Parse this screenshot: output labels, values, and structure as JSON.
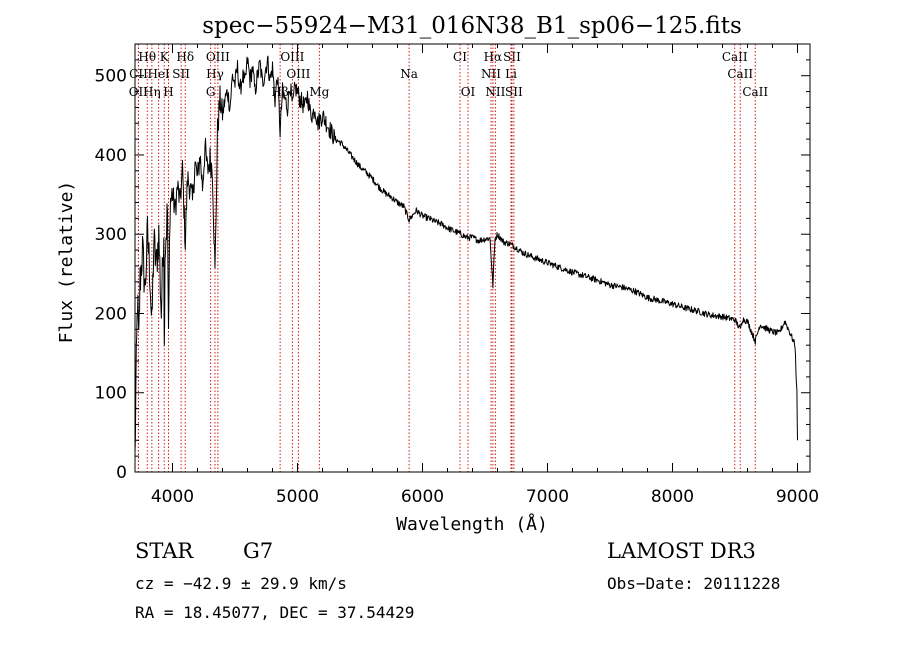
{
  "chart_data": {
    "type": "line",
    "title": "spec−55924−M31_016N38_B1_sp06−125.fits",
    "xlabel": "Wavelength (Å)",
    "ylabel": "Flux (relative)",
    "xlim": [
      3700,
      9100
    ],
    "ylim": [
      0,
      540
    ],
    "xticks": [
      4000,
      5000,
      6000,
      7000,
      8000,
      9000
    ],
    "xtick_labels": [
      "4000",
      "5000",
      "6000",
      "7000",
      "8000",
      "9000"
    ],
    "yticks": [
      0,
      100,
      200,
      300,
      400,
      500
    ],
    "ytick_labels": [
      "0",
      "100",
      "200",
      "300",
      "400",
      "500"
    ],
    "spectrum": {
      "x": [
        3700,
        3710,
        3720,
        3730,
        3740,
        3760,
        3780,
        3800,
        3820,
        3835,
        3850,
        3870,
        3890,
        3910,
        3930,
        3934,
        3940,
        3960,
        3968,
        3980,
        4000,
        4020,
        4040,
        4060,
        4080,
        4102,
        4120,
        4140,
        4160,
        4180,
        4200,
        4220,
        4240,
        4260,
        4280,
        4300,
        4320,
        4340,
        4360,
        4380,
        4400,
        4420,
        4440,
        4460,
        4480,
        4500,
        4520,
        4540,
        4560,
        4580,
        4600,
        4620,
        4640,
        4660,
        4680,
        4700,
        4720,
        4740,
        4760,
        4780,
        4800,
        4820,
        4840,
        4861,
        4880,
        4900,
        4920,
        4940,
        4960,
        4980,
        5000,
        5020,
        5040,
        5060,
        5080,
        5100,
        5120,
        5140,
        5160,
        5180,
        5200,
        5250,
        5300,
        5350,
        5400,
        5450,
        5500,
        5550,
        5600,
        5650,
        5700,
        5750,
        5800,
        5850,
        5893,
        5950,
        6000,
        6050,
        6100,
        6150,
        6200,
        6250,
        6300,
        6350,
        6400,
        6450,
        6500,
        6540,
        6563,
        6580,
        6600,
        6650,
        6700,
        6750,
        6800,
        6900,
        7000,
        7100,
        7200,
        7300,
        7400,
        7500,
        7600,
        7700,
        7800,
        7900,
        8000,
        8100,
        8200,
        8300,
        8400,
        8500,
        8542,
        8560,
        8600,
        8662,
        8700,
        8750,
        8800,
        8850,
        8900,
        8950,
        8980,
        8995,
        9000
      ],
      "y": [
        15,
        130,
        220,
        160,
        240,
        280,
        230,
        300,
        250,
        180,
        290,
        260,
        300,
        200,
        310,
        150,
        280,
        330,
        160,
        340,
        350,
        330,
        360,
        340,
        380,
        290,
        370,
        360,
        340,
        390,
        370,
        400,
        360,
        410,
        380,
        395,
        380,
        250,
        430,
        470,
        450,
        470,
        480,
        460,
        500,
        490,
        510,
        480,
        500,
        490,
        520,
        495,
        510,
        480,
        500,
        515,
        490,
        505,
        520,
        495,
        510,
        470,
        500,
        430,
        480,
        470,
        460,
        490,
        460,
        485,
        480,
        470,
        465,
        460,
        475,
        455,
        450,
        460,
        440,
        445,
        450,
        435,
        420,
        415,
        405,
        395,
        385,
        378,
        370,
        360,
        352,
        347,
        340,
        335,
        318,
        330,
        323,
        320,
        316,
        313,
        308,
        304,
        301,
        296,
        296,
        292,
        294,
        295,
        235,
        294,
        300,
        290,
        288,
        283,
        277,
        270,
        264,
        258,
        252,
        247,
        242,
        236,
        233,
        228,
        220,
        216,
        212,
        207,
        203,
        198,
        196,
        192,
        180,
        193,
        190,
        165,
        186,
        181,
        177,
        175,
        190,
        172,
        160,
        100,
        40
      ]
    },
    "lines": [
      {
        "name": "Hθ",
        "wavelength": 3798,
        "row": 1
      },
      {
        "name": "K",
        "wavelength": 3934,
        "row": 1
      },
      {
        "name": "Hδ",
        "wavelength": 4102,
        "row": 1
      },
      {
        "name": "OIII",
        "wavelength": 4363,
        "row": 1
      },
      {
        "name": "OIII",
        "wavelength": 4959,
        "row": 1
      },
      {
        "name": "CI",
        "wavelength": 6300,
        "row": 1
      },
      {
        "name": "Hα",
        "wavelength": 6563,
        "row": 1
      },
      {
        "name": "SII",
        "wavelength": 6716,
        "row": 1
      },
      {
        "name": "CaII",
        "wavelength": 8498,
        "row": 1
      },
      {
        "name": "CII",
        "wavelength": 3728,
        "row": 2
      },
      {
        "name": "HeI",
        "wavelength": 3889,
        "row": 2
      },
      {
        "name": "SII",
        "wavelength": 4069,
        "row": 2
      },
      {
        "name": "Hγ",
        "wavelength": 4340,
        "row": 2
      },
      {
        "name": "OIII",
        "wavelength": 5007,
        "row": 2
      },
      {
        "name": "Na",
        "wavelength": 5893,
        "row": 2
      },
      {
        "name": "NII",
        "wavelength": 6548,
        "row": 2
      },
      {
        "name": "Li",
        "wavelength": 6708,
        "row": 2
      },
      {
        "name": "CaII",
        "wavelength": 8542,
        "row": 2
      },
      {
        "name": "OII",
        "wavelength": 3727,
        "row": 3
      },
      {
        "name": "Hη",
        "wavelength": 3835,
        "row": 3
      },
      {
        "name": "H",
        "wavelength": 3968,
        "row": 3
      },
      {
        "name": "G",
        "wavelength": 4305,
        "row": 3
      },
      {
        "name": "Hβ",
        "wavelength": 4861,
        "row": 3
      },
      {
        "name": "Mg",
        "wavelength": 5175,
        "row": 3
      },
      {
        "name": "OI",
        "wavelength": 6364,
        "row": 3
      },
      {
        "name": "NII",
        "wavelength": 6583,
        "row": 3
      },
      {
        "name": "SII",
        "wavelength": 6731,
        "row": 3
      },
      {
        "name": "CaII",
        "wavelength": 8662,
        "row": 3
      }
    ],
    "line_color": "#d01818"
  },
  "info": {
    "class_label": "STAR",
    "subclass": "G7",
    "survey": "LAMOST DR3",
    "cz": "cz = −42.9 ± 29.9 km/s",
    "obs_date": "Obs−Date: 20111228",
    "coords": "RA =  18.45077, DEC =  37.54429"
  }
}
